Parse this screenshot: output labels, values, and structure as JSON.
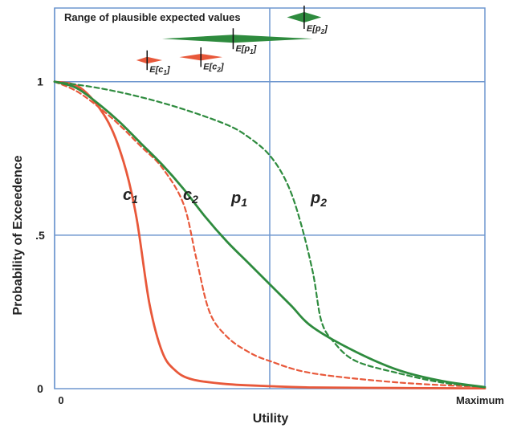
{
  "chart_data": {
    "type": "line",
    "title": "",
    "xlabel": "Utility",
    "ylabel": "Probability of Exceedence",
    "xlim": [
      0,
      1
    ],
    "ylim": [
      0,
      1.24
    ],
    "x_tick_labels": {
      "min": "0",
      "max": "Maximum"
    },
    "y_ticks": [
      {
        "value": 0,
        "label": "0"
      },
      {
        "value": 0.5,
        "label": ".5"
      },
      {
        "value": 1,
        "label": "1"
      }
    ],
    "grid": {
      "x": [
        0,
        0.5
      ],
      "y": [
        0.5,
        1
      ]
    },
    "colors": {
      "c": "#e8583a",
      "p": "#2e8b3e",
      "grid": "#6f97cf"
    },
    "series": [
      {
        "name": "c1",
        "label_main": "c",
        "label_sub": "1",
        "color": "#e8583a",
        "dash": false,
        "x": [
          0.0,
          0.06,
          0.12,
          0.16,
          0.19,
          0.22,
          0.25,
          0.28,
          0.32,
          0.4,
          0.5,
          0.6,
          0.8,
          1.0
        ],
        "y": [
          1.0,
          0.98,
          0.88,
          0.74,
          0.56,
          0.28,
          0.12,
          0.06,
          0.03,
          0.015,
          0.008,
          0.004,
          0.002,
          0.001
        ]
      },
      {
        "name": "c2",
        "label_main": "c",
        "label_sub": "2",
        "color": "#e8583a",
        "dash": true,
        "x": [
          0.0,
          0.05,
          0.1,
          0.15,
          0.2,
          0.25,
          0.3,
          0.33,
          0.36,
          0.4,
          0.45,
          0.5,
          0.6,
          0.8,
          1.0
        ],
        "y": [
          1.0,
          0.97,
          0.92,
          0.86,
          0.79,
          0.72,
          0.6,
          0.42,
          0.25,
          0.17,
          0.12,
          0.09,
          0.05,
          0.02,
          0.005
        ]
      },
      {
        "name": "p1",
        "label_main": "p",
        "label_sub": "1",
        "color": "#2e8b3e",
        "dash": false,
        "x": [
          0.0,
          0.05,
          0.1,
          0.15,
          0.2,
          0.25,
          0.3,
          0.35,
          0.4,
          0.45,
          0.5,
          0.55,
          0.6,
          0.7,
          0.8,
          0.9,
          1.0
        ],
        "y": [
          1.0,
          0.98,
          0.93,
          0.87,
          0.8,
          0.73,
          0.65,
          0.56,
          0.48,
          0.41,
          0.34,
          0.27,
          0.2,
          0.12,
          0.06,
          0.025,
          0.005
        ]
      },
      {
        "name": "p2",
        "label_main": "p",
        "label_sub": "2",
        "color": "#2e8b3e",
        "dash": true,
        "x": [
          0.0,
          0.1,
          0.2,
          0.3,
          0.4,
          0.45,
          0.5,
          0.54,
          0.57,
          0.6,
          0.62,
          0.65,
          0.7,
          0.8,
          0.9,
          1.0
        ],
        "y": [
          1.0,
          0.98,
          0.95,
          0.91,
          0.86,
          0.82,
          0.76,
          0.67,
          0.55,
          0.38,
          0.22,
          0.15,
          0.09,
          0.05,
          0.02,
          0.005
        ]
      }
    ],
    "range_annotations": {
      "title": "Range of plausible expected values",
      "items": [
        {
          "name": "E[c1]",
          "main": "E[c",
          "sub": "1",
          "close": "]",
          "color": "#e8583a",
          "min": 0.19,
          "max": 0.25,
          "expected": 0.215,
          "level": 1.07,
          "height": 0.022
        },
        {
          "name": "E[c2]",
          "main": "E[c",
          "sub": "2",
          "close": "]",
          "color": "#e8583a",
          "min": 0.29,
          "max": 0.39,
          "expected": 0.34,
          "level": 1.08,
          "height": 0.022
        },
        {
          "name": "E[p1]",
          "main": "E[p",
          "sub": "1",
          "close": "]",
          "color": "#2e8b3e",
          "min": 0.25,
          "max": 0.6,
          "expected": 0.415,
          "level": 1.14,
          "height": 0.026
        },
        {
          "name": "E[p2]",
          "main": "E[p",
          "sub": "2",
          "close": "]",
          "color": "#2e8b3e",
          "min": 0.54,
          "max": 0.62,
          "expected": 0.58,
          "level": 1.21,
          "height": 0.034
        }
      ]
    }
  }
}
